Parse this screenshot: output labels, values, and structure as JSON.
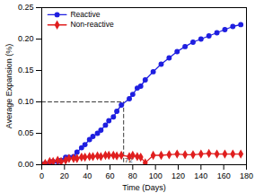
{
  "chart_data": {
    "type": "line",
    "x_label": "Time (Days)",
    "y_label": "Average Expansion (%)",
    "x": [
      0,
      3,
      7,
      10,
      14,
      17,
      21,
      24,
      28,
      31,
      35,
      38,
      42,
      45,
      49,
      52,
      56,
      59,
      63,
      66,
      70,
      77,
      80,
      84,
      87,
      91,
      98,
      105,
      112,
      119,
      126,
      133,
      140,
      147,
      154,
      161,
      168,
      175
    ],
    "series": [
      {
        "name": "Reactive",
        "color": "#1f1fe0",
        "marker": "circle",
        "values": [
          0,
          0.002,
          0.003,
          0.005,
          0.005,
          0.007,
          0.012,
          0.012,
          0.013,
          0.02,
          0.027,
          0.032,
          0.04,
          0.045,
          0.05,
          0.055,
          0.063,
          0.07,
          0.076,
          0.085,
          0.095,
          0.105,
          0.112,
          0.122,
          0.125,
          0.135,
          0.148,
          0.16,
          0.17,
          0.18,
          0.188,
          0.195,
          0.2,
          0.205,
          0.21,
          0.215,
          0.22,
          0.223
        ]
      },
      {
        "name": "Non-reactive",
        "color": "#e01f1f",
        "marker": "diamond",
        "values": [
          0,
          0.002,
          0.005,
          0.005,
          0.007,
          0.005,
          0.007,
          0.01,
          0.01,
          0.01,
          0.012,
          0.012,
          0.013,
          0.013,
          0.014,
          0.013,
          0.015,
          0.015,
          0.015,
          0.014,
          0.015,
          0.013,
          0.015,
          0.013,
          0.012,
          0.003,
          0.015,
          0.015,
          0.016,
          0.017,
          0.016,
          0.016,
          0.017,
          0.018,
          0.017,
          0.017,
          0.017,
          0.017
        ]
      }
    ],
    "annotations": [
      {
        "label": "72",
        "x": 72,
        "y": 0.1,
        "line_style": "dashed"
      }
    ],
    "xlim": [
      0,
      180
    ],
    "xticks": [
      0,
      20,
      40,
      60,
      80,
      100,
      120,
      140,
      160,
      180
    ],
    "ylim": [
      0,
      0.25
    ],
    "yticks": [
      {
        "value": 0,
        "label": "0.00"
      },
      {
        "value": 0.05,
        "label": "0.05"
      },
      {
        "value": 0.1,
        "label": "0.10"
      },
      {
        "value": 0.15,
        "label": "0.15"
      },
      {
        "value": 0.2,
        "label": "0.20"
      },
      {
        "value": 0.25,
        "label": "0.25"
      }
    ],
    "legend": "upper left",
    "grid": false
  }
}
